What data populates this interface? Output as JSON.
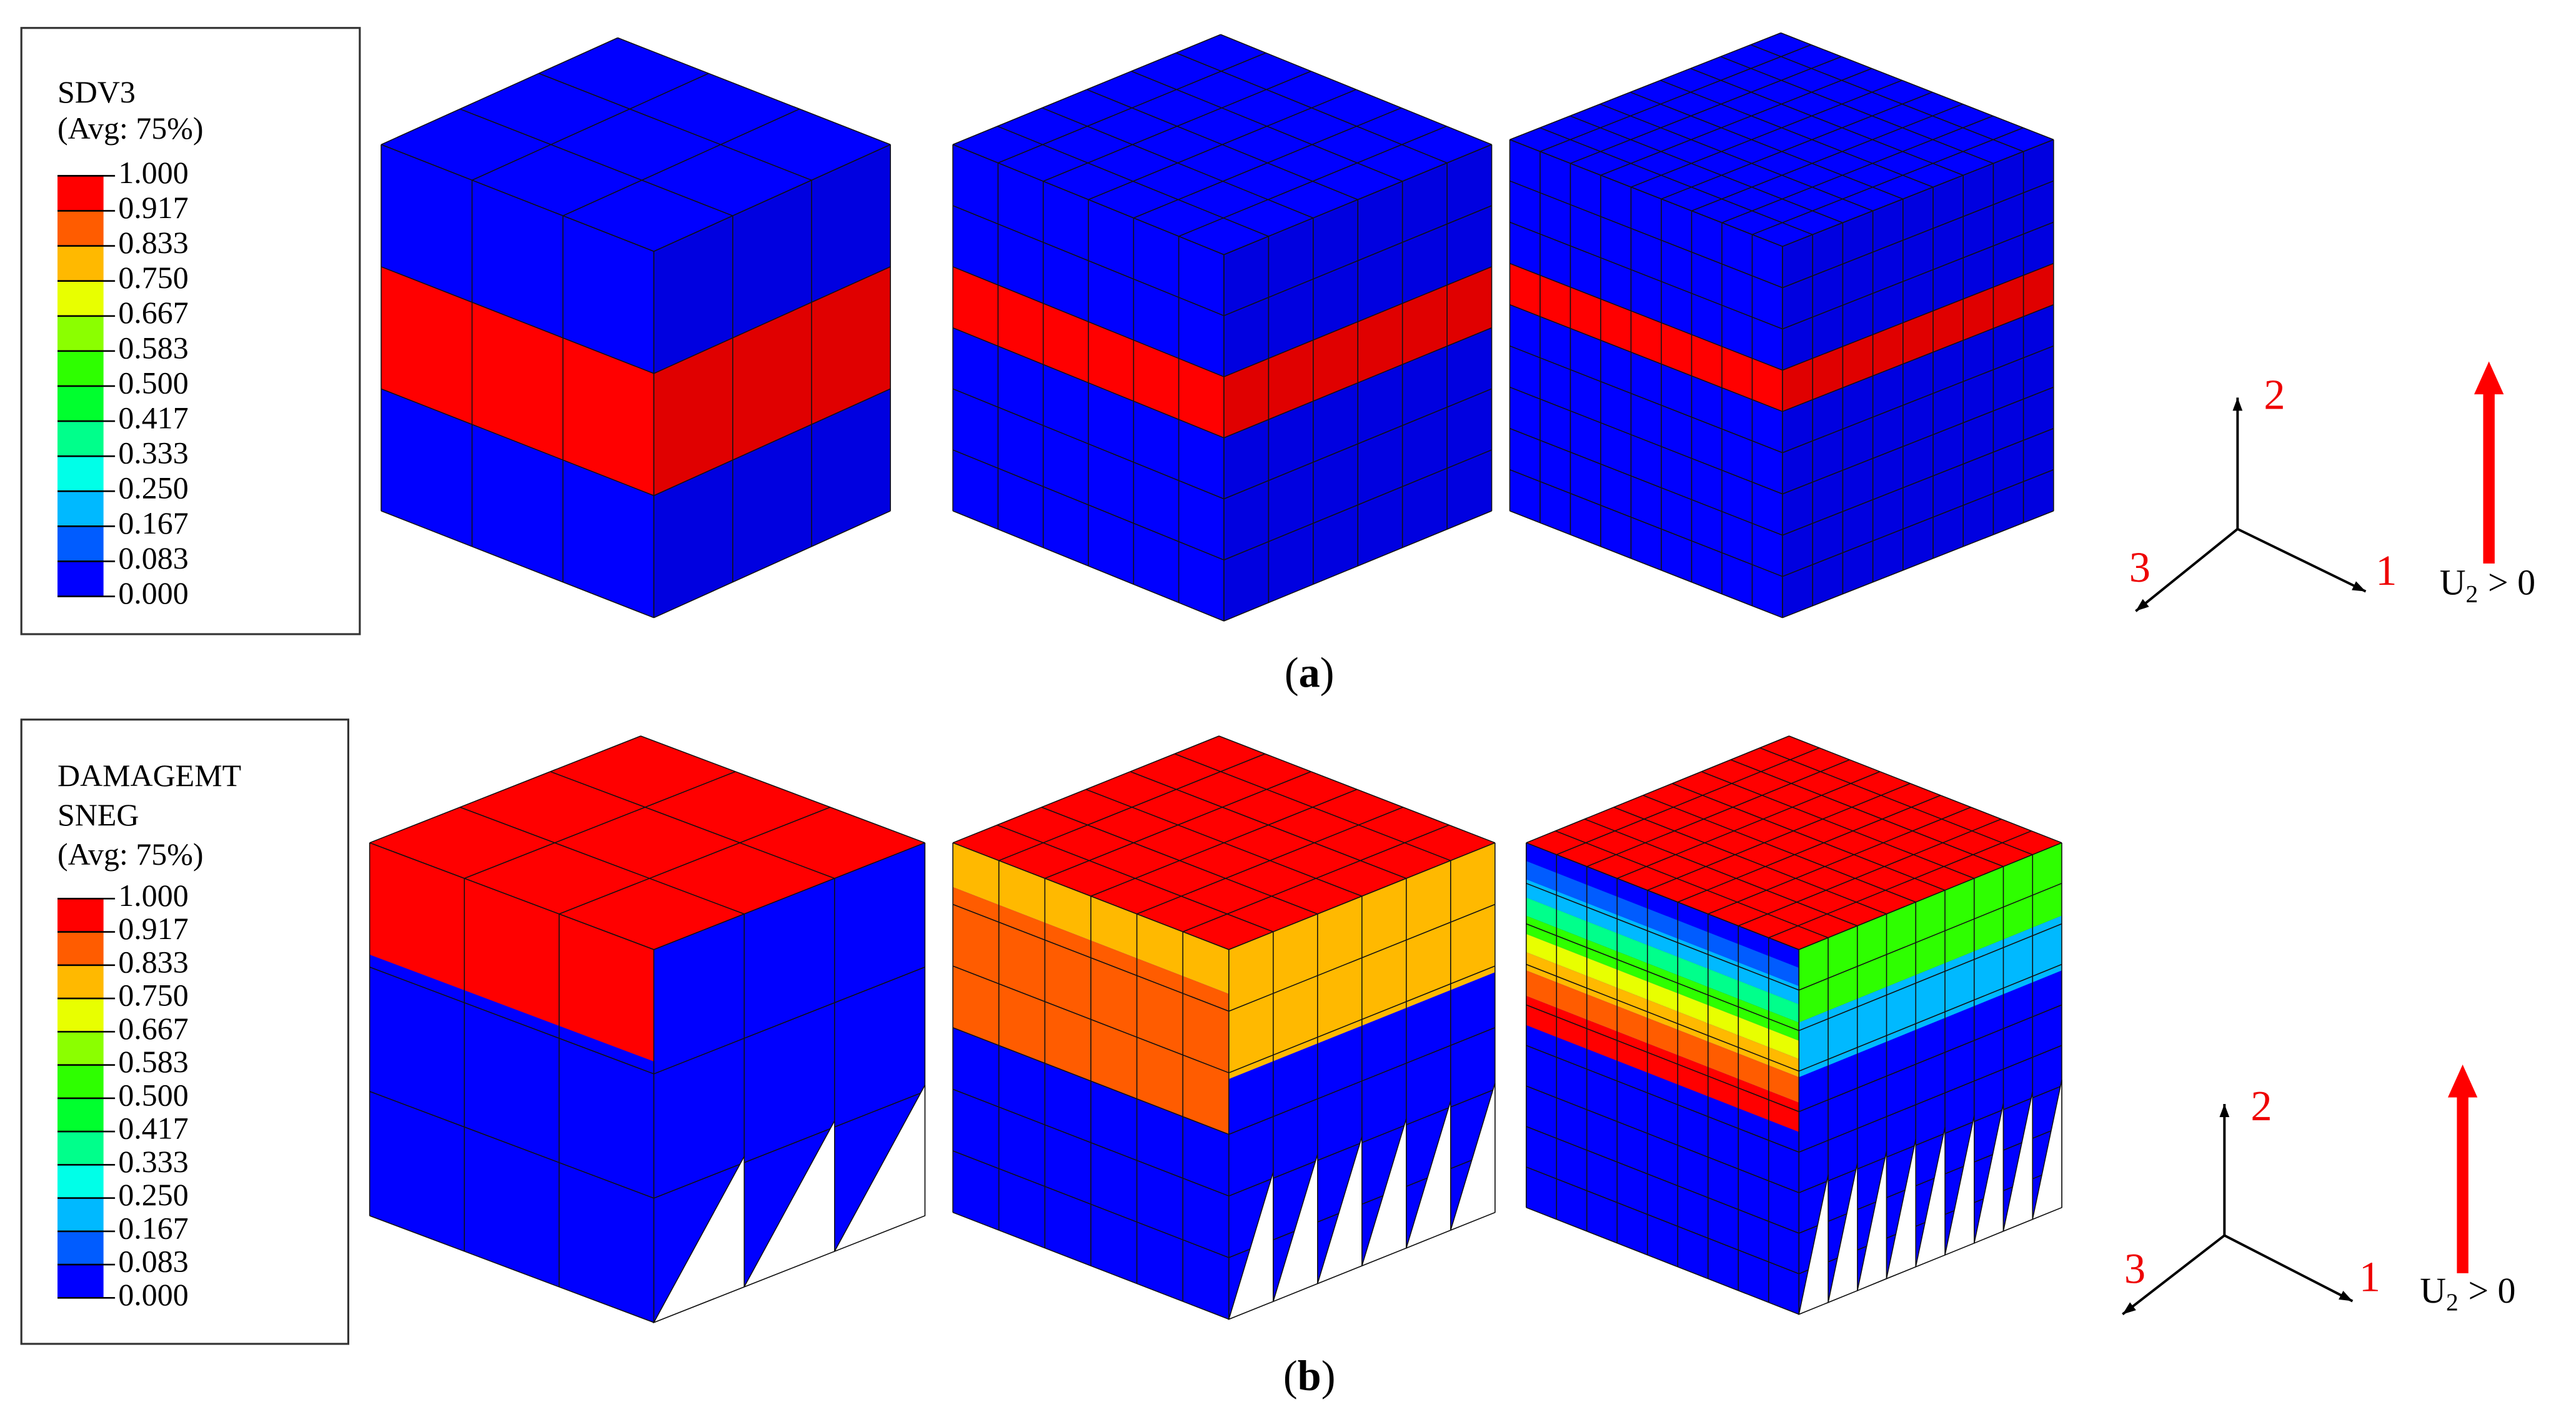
{
  "panels": [
    {
      "legend": {
        "title": [
          "SDV3",
          "(Avg: 75%)"
        ],
        "labels": [
          "1.000",
          "0.917",
          "0.833",
          "0.750",
          "0.667",
          "0.583",
          "0.500",
          "0.417",
          "0.333",
          "0.250",
          "0.167",
          "0.083",
          "0.000"
        ],
        "colors": [
          "#ff0000",
          "#ff5c00",
          "#ffb900",
          "#e8ff00",
          "#8bff00",
          "#2eff00",
          "#00ff2e",
          "#00ff8b",
          "#00ffe8",
          "#00b9ff",
          "#005cff",
          "#0000ff"
        ]
      },
      "triad": {
        "axes": [
          "2",
          "1",
          "3"
        ],
        "load": {
          "symbol": "U",
          "subscript": "2",
          "relation": "> 0"
        }
      },
      "caption": [
        "(",
        "a",
        ")"
      ]
    },
    {
      "legend": {
        "title": [
          "DAMAGEMT",
          "SNEG",
          "(Avg: 75%)"
        ],
        "labels": [
          "1.000",
          "0.917",
          "0.833",
          "0.750",
          "0.667",
          "0.583",
          "0.500",
          "0.417",
          "0.333",
          "0.250",
          "0.167",
          "0.083",
          "0.000"
        ],
        "colors": [
          "#ff0000",
          "#ff5c00",
          "#ffb900",
          "#e8ff00",
          "#8bff00",
          "#2eff00",
          "#00ff2e",
          "#00ff8b",
          "#00ffe8",
          "#00b9ff",
          "#005cff",
          "#0000ff"
        ]
      },
      "triad": {
        "axes": [
          "2",
          "1",
          "3"
        ],
        "load": {
          "symbol": "U",
          "subscript": "2",
          "relation": "> 0"
        }
      },
      "caption": [
        "(",
        "b",
        ")"
      ]
    }
  ]
}
